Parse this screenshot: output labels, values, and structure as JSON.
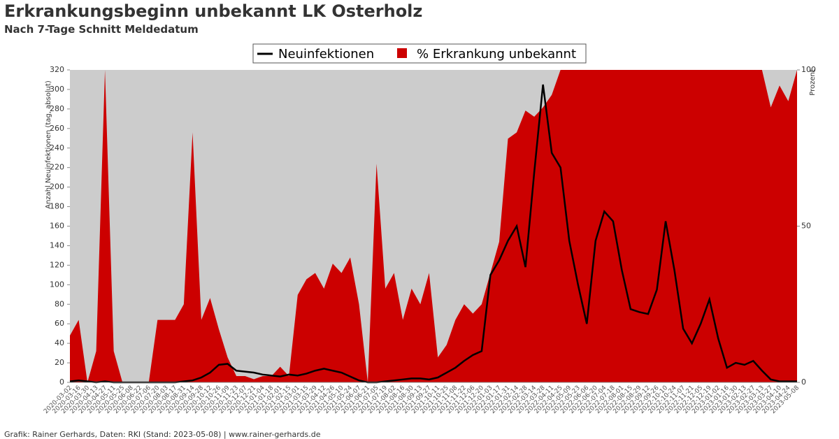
{
  "chart_data": {
    "type": "line",
    "title": "Erkrankungsbeginn unbekannt LK Osterholz",
    "subtitle": "Nach 7-Tage Schnitt Meldedatum",
    "ylabel": "Anzahl Neuinfektionen (tag, absolut)",
    "y2label": "Prozent",
    "footer": "Grafik: Rainer Gerhards, Daten: RKI (Stand: 2023-05-08) | www.rainer-gerhards.de",
    "legend": "top",
    "background": "#cccccc",
    "categories": [
      "2020-03-02",
      "2020-03-16",
      "2020-03-30",
      "2020-04-13",
      "2020-04-27",
      "2020-05-11",
      "2020-05-25",
      "2020-06-08",
      "2020-06-22",
      "2020-07-06",
      "2020-07-20",
      "2020-08-03",
      "2020-08-17",
      "2020-08-31",
      "2020-09-14",
      "2020-09-28",
      "2020-10-12",
      "2020-10-26",
      "2020-11-09",
      "2020-11-23",
      "2020-12-07",
      "2020-12-21",
      "2021-01-04",
      "2021-01-18",
      "2021-02-01",
      "2021-02-15",
      "2021-03-01",
      "2021-03-15",
      "2021-03-29",
      "2021-04-12",
      "2021-04-26",
      "2021-05-10",
      "2021-05-24",
      "2021-06-07",
      "2021-06-21",
      "2021-07-05",
      "2021-07-19",
      "2021-08-02",
      "2021-08-16",
      "2021-08-30",
      "2021-09-13",
      "2021-09-27",
      "2021-10-11",
      "2021-10-25",
      "2021-11-08",
      "2021-11-22",
      "2021-12-06",
      "2021-12-20",
      "2022-01-03",
      "2022-01-17",
      "2022-01-31",
      "2022-02-14",
      "2022-02-28",
      "2022-03-14",
      "2022-03-28",
      "2022-04-11",
      "2022-04-25",
      "2022-05-09",
      "2022-05-23",
      "2022-06-06",
      "2022-06-20",
      "2022-07-04",
      "2022-07-18",
      "2022-08-01",
      "2022-08-15",
      "2022-08-29",
      "2022-09-12",
      "2022-09-26",
      "2022-10-10",
      "2022-10-24",
      "2022-11-07",
      "2022-11-21",
      "2022-12-05",
      "2022-12-19",
      "2023-01-02",
      "2023-01-16",
      "2023-01-30",
      "2023-02-13",
      "2023-02-27",
      "2023-03-13",
      "2023-03-27",
      "2023-04-10",
      "2023-04-24",
      "2023-05-08"
    ],
    "series": [
      {
        "name": "% Erkrankung unbekannt",
        "type": "area",
        "axis": "y2",
        "color": "#cc0000",
        "values": [
          15,
          20,
          0,
          10,
          100,
          10,
          0,
          0,
          0,
          0,
          20,
          20,
          20,
          25,
          80,
          20,
          27,
          17,
          8,
          2,
          2,
          1,
          2,
          2,
          5,
          2,
          28,
          33,
          35,
          30,
          38,
          35,
          40,
          25,
          0,
          70,
          30,
          35,
          20,
          30,
          25,
          35,
          8,
          12,
          20,
          25,
          22,
          25,
          35,
          45,
          78,
          80,
          87,
          85,
          88,
          92,
          100,
          100,
          100,
          100,
          100,
          100,
          100,
          100,
          100,
          100,
          100,
          100,
          100,
          100,
          100,
          100,
          100,
          100,
          100,
          100,
          100,
          100,
          100,
          100,
          88,
          95,
          90,
          100
        ]
      },
      {
        "name": "Neuinfektionen",
        "type": "line",
        "axis": "y",
        "color": "#000000",
        "values": [
          1,
          2,
          1,
          0,
          1,
          0,
          0,
          0,
          0,
          0,
          0,
          0,
          0,
          1,
          2,
          5,
          10,
          18,
          19,
          12,
          11,
          10,
          8,
          7,
          6,
          8,
          7,
          9,
          12,
          14,
          12,
          10,
          6,
          2,
          0,
          0,
          1,
          2,
          3,
          4,
          4,
          3,
          5,
          10,
          15,
          22,
          28,
          32,
          110,
          125,
          145,
          160,
          118,
          215,
          305,
          235,
          220,
          145,
          100,
          60,
          145,
          175,
          165,
          115,
          75,
          72,
          70,
          95,
          165,
          115,
          55,
          40,
          60,
          85,
          45,
          15,
          20,
          18,
          22,
          12,
          3,
          1,
          1,
          1
        ]
      }
    ],
    "ylim": [
      0,
      320
    ],
    "yticks": [
      0,
      20,
      40,
      60,
      80,
      100,
      120,
      140,
      160,
      180,
      200,
      220,
      240,
      260,
      280,
      300,
      320
    ],
    "y2lim": [
      0,
      100
    ],
    "y2ticks": [
      0,
      50,
      100
    ]
  }
}
